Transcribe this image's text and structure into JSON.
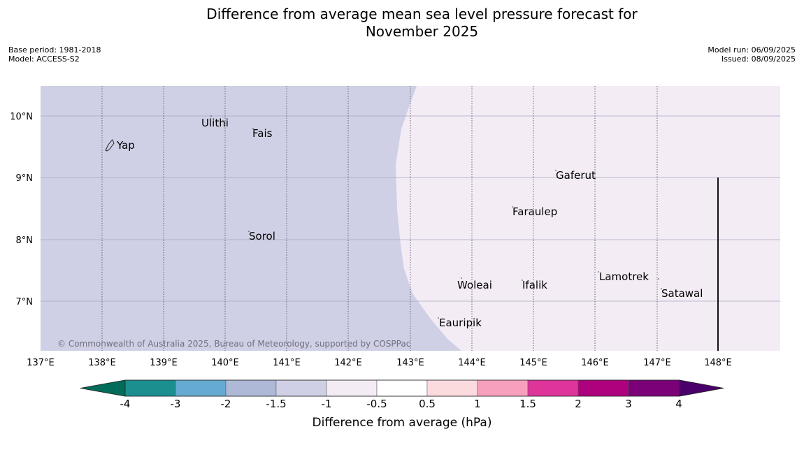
{
  "title": {
    "line1": "Difference from average mean sea level pressure forecast for",
    "line2": "November 2025"
  },
  "meta_left": {
    "base_period": "Base period: 1981-2018",
    "model": "Model: ACCESS-S2"
  },
  "meta_right": {
    "model_run": "Model run: 06/09/2025",
    "issued": "Issued: 08/09/2025"
  },
  "map": {
    "lon_labels": [
      "137°E",
      "138°E",
      "139°E",
      "140°E",
      "141°E",
      "142°E",
      "143°E",
      "144°E",
      "145°E",
      "146°E",
      "147°E",
      "148°E"
    ],
    "lat_labels": [
      "10°N",
      "9°N",
      "8°N",
      "7°N"
    ],
    "places": [
      "Ulithi",
      "Fais",
      "Yap",
      "Gaferut",
      "Faraulep",
      "Sorol",
      "Lamotrek",
      "Woleai",
      "Ifalik",
      "Satawal",
      "Eauripik"
    ],
    "copyright": "© Commonwealth of Australia 2025, Bureau of Meteorology, supported by COSPPac",
    "colors": {
      "west_region": "#cfd0e5",
      "east_region": "#f3ecf5",
      "gridline": "#a9a9c2"
    }
  },
  "colorbar": {
    "title": "Difference from average (hPa)",
    "tick_labels": [
      "-4",
      "-3",
      "-2",
      "-1.5",
      "-1",
      "-0.5",
      "0.5",
      "1",
      "1.5",
      "2",
      "3",
      "4"
    ],
    "colors": [
      "#1a8f8f",
      "#65aad1",
      "#adb9d7",
      "#cfd0e5",
      "#f3ecf5",
      "#ffffff",
      "#fcdbdf",
      "#f7a0bd",
      "#dd3599",
      "#ae017e",
      "#7a0177"
    ],
    "extend_low_color": "#016c59",
    "extend_high_color": "#49006a"
  }
}
